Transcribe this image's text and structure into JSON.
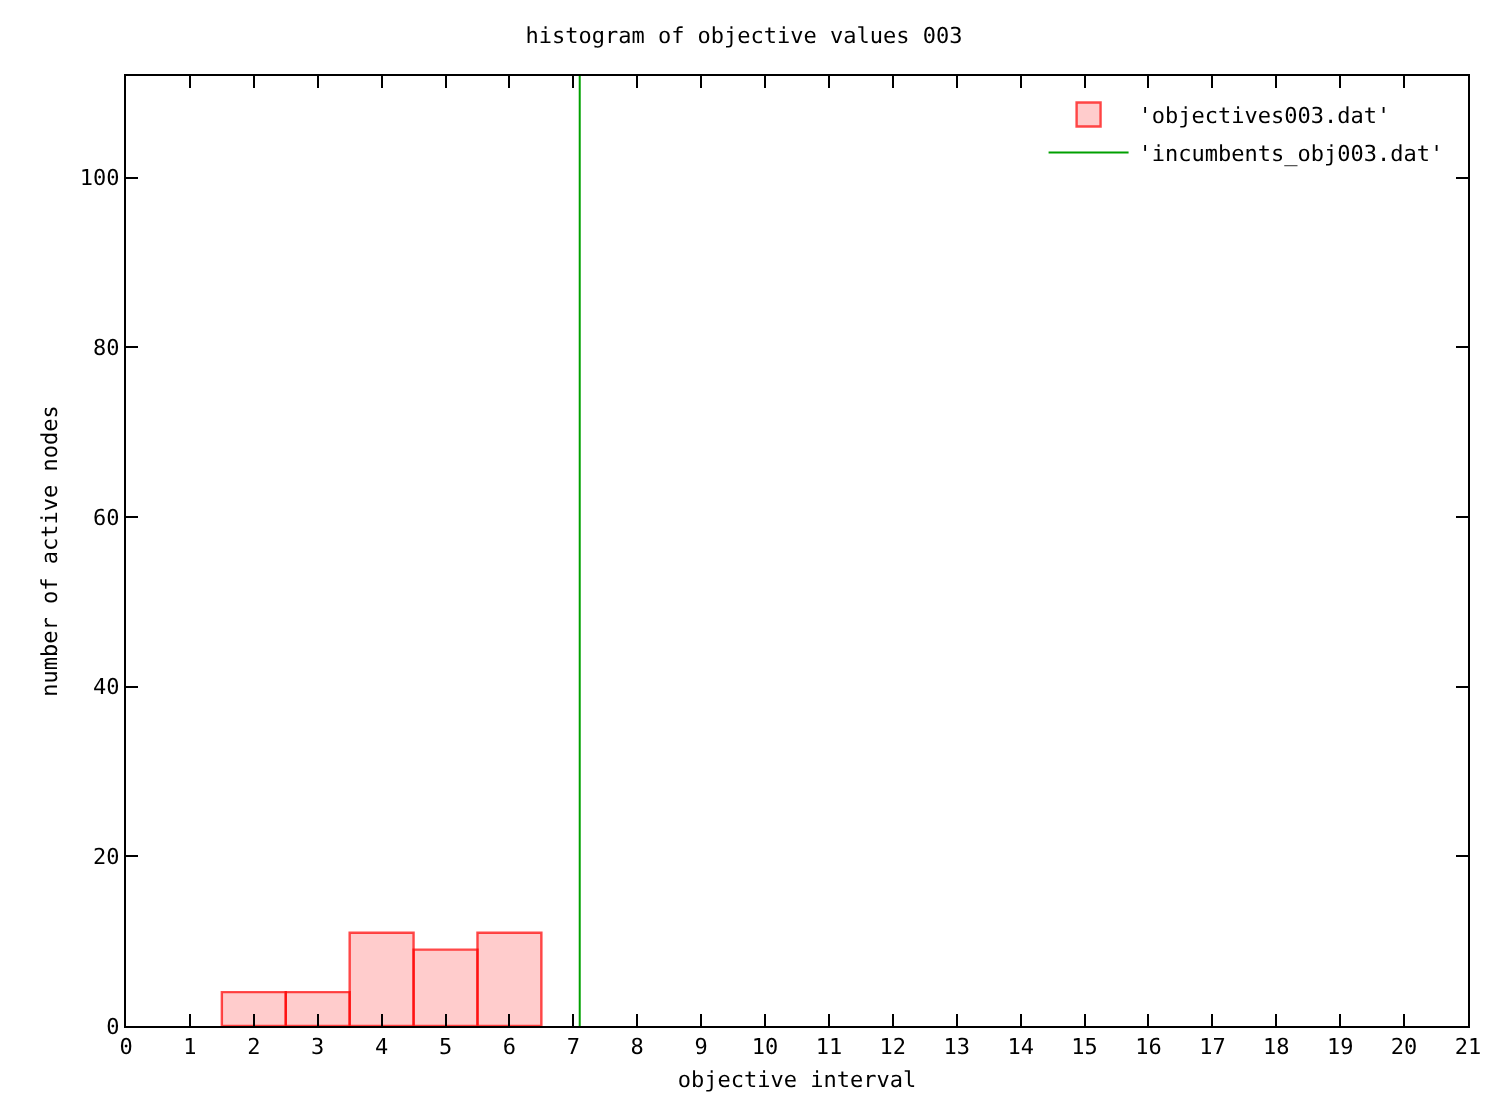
{
  "chart_data": {
    "type": "histogram",
    "title": "histogram of objective values 003",
    "xlabel": "objective interval",
    "ylabel": "number of active nodes",
    "bins": [
      1.5,
      2.5,
      3.5,
      4.5,
      5.5,
      6.5
    ],
    "series": [
      {
        "name": "'objectives003.dat'",
        "color": "#ff0000",
        "values": [
          4,
          4,
          11,
          9,
          11
        ]
      },
      {
        "name": "'incumbents_obj003.dat'",
        "color": "#00a000",
        "type": "line",
        "x": [
          7.1,
          7.1
        ],
        "values": [
          0,
          112
        ]
      }
    ],
    "xlim": [
      0,
      21
    ],
    "xticks": [
      0,
      1,
      2,
      3,
      4,
      5,
      6,
      7,
      8,
      9,
      10,
      11,
      12,
      13,
      14,
      15,
      16,
      17,
      18,
      19,
      20,
      21
    ],
    "ylim": [
      0,
      112
    ],
    "yticks": [
      0,
      20,
      40,
      60,
      80,
      100
    ],
    "grid": false,
    "legend": "top right"
  }
}
